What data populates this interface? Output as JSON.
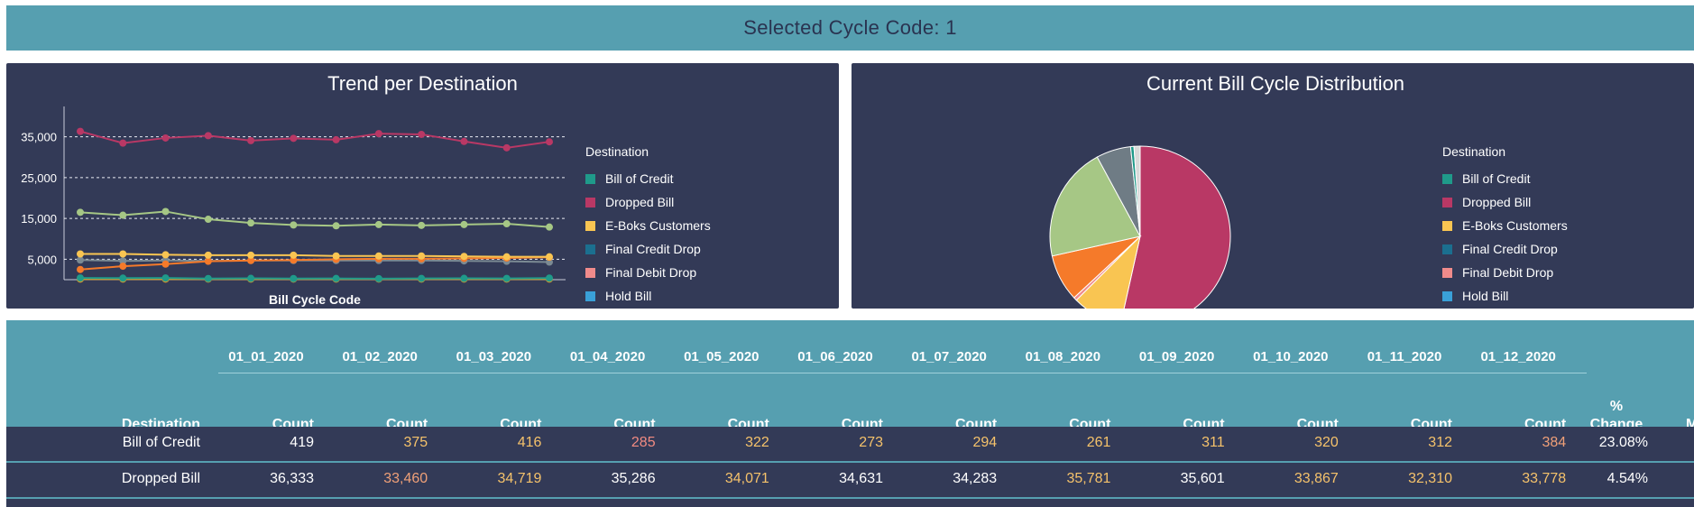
{
  "header": {
    "title": "Selected Cycle Code: 1"
  },
  "trend_panel": {
    "title": "Trend per Destination",
    "legend_title": "Destination",
    "xlabel": "Bill Cycle Code"
  },
  "distribution_panel": {
    "title": "Current Bill Cycle Distribution",
    "legend_title": "Destination"
  },
  "legend_items": [
    {
      "label": "Bill of Credit",
      "color": "#1f9a8a"
    },
    {
      "label": "Dropped Bill",
      "color": "#b93865"
    },
    {
      "label": "E-Boks Customers",
      "color": "#f9c552"
    },
    {
      "label": "Final Credit Drop",
      "color": "#1b6f8f"
    },
    {
      "label": "Final Debit Drop",
      "color": "#f08b8b"
    },
    {
      "label": "Hold Bill",
      "color": "#3aa0d8"
    }
  ],
  "chart_data": [
    {
      "type": "line",
      "title": "Trend per Destination",
      "xlabel": "Bill Cycle Code",
      "ylabel": "",
      "x": [
        "01_01_2020",
        "01_02_2020",
        "01_03_2020",
        "01_04_2020",
        "01_05_2020",
        "01_06_2020",
        "01_07_2020",
        "01_08_2020",
        "01_09_2020",
        "01_10_2020",
        "01_11_2020",
        "01_12_2020"
      ],
      "yticks": [
        "5,000",
        "15,000",
        "25,000",
        "35,000"
      ],
      "ylim": [
        0,
        42000
      ],
      "grid": true,
      "series": [
        {
          "name": "Dropped Bill",
          "color": "#b93865",
          "values": [
            36333,
            33460,
            34719,
            35286,
            34071,
            34631,
            34283,
            35781,
            35601,
            33867,
            32310,
            33778
          ]
        },
        {
          "color": "#a6c785",
          "values": [
            16500,
            15800,
            16700,
            14800,
            13900,
            13400,
            13200,
            13500,
            13300,
            13500,
            13700,
            12900
          ]
        },
        {
          "name": "E-Boks Customers",
          "color": "#f9c552",
          "values": [
            6300,
            6300,
            6100,
            6000,
            6000,
            6000,
            5800,
            5800,
            5800,
            5700,
            5600,
            5600
          ]
        },
        {
          "color": "#f57a2a",
          "values": [
            2500,
            3300,
            3800,
            4500,
            4700,
            4800,
            5000,
            5100,
            5100,
            5200,
            5300,
            5500
          ]
        },
        {
          "color": "#7b8a93",
          "values": [
            4800,
            4600,
            4700,
            4600,
            4700,
            4700,
            4700,
            4700,
            4700,
            4600,
            4500,
            4300
          ]
        },
        {
          "name": "Bill of Credit",
          "color": "#1f9a8a",
          "values": [
            419,
            375,
            416,
            285,
            322,
            273,
            294,
            261,
            311,
            320,
            312,
            384
          ]
        },
        {
          "color": "#d59a2c",
          "values": [
            150,
            150,
            150,
            150,
            150,
            150,
            150,
            150,
            150,
            150,
            150,
            150
          ]
        }
      ]
    },
    {
      "type": "pie",
      "title": "Current Bill Cycle Distribution",
      "slices": [
        {
          "name": "Dropped Bill",
          "color": "#b93865",
          "value": 53.5
        },
        {
          "name": "E-Boks Customers",
          "color": "#f9c552",
          "value": 9.0
        },
        {
          "name": "Final Debit Drop",
          "color": "#f08b8b",
          "value": 0.6
        },
        {
          "color": "#f57a2a",
          "value": 8.4
        },
        {
          "color": "#a6c785",
          "value": 20.6
        },
        {
          "color": "#6f7c85",
          "value": 6.2
        },
        {
          "name": "Bill of Credit",
          "color": "#1f9a8a",
          "value": 0.6
        },
        {
          "color": "#d9d9d9",
          "value": 1.1
        }
      ]
    }
  ],
  "table": {
    "dates": [
      "01_01_2020",
      "01_02_2020",
      "01_03_2020",
      "01_04_2020",
      "01_05_2020",
      "01_06_2020",
      "01_07_2020",
      "01_08_2020",
      "01_09_2020",
      "01_10_2020",
      "01_11_2020",
      "01_12_2020"
    ],
    "destination_header": "Destination",
    "count_header": "Count",
    "change_header_line1": "%",
    "change_header_line2": "Change",
    "extra_header": "M",
    "rows": [
      {
        "destination": "Bill of Credit",
        "counts": [
          "419",
          "375",
          "416",
          "285",
          "322",
          "273",
          "294",
          "261",
          "311",
          "320",
          "312",
          "384"
        ],
        "colors": [
          "#ffffff",
          "#f5c26b",
          "#f5c26b",
          "#f28b82",
          "#f5c26b",
          "#f5c26b",
          "#f5c26b",
          "#f5c26b",
          "#f5c26b",
          "#f5c26b",
          "#f5c26b",
          "#f0a078"
        ],
        "change": "23.08%"
      },
      {
        "destination": "Dropped Bill",
        "counts": [
          "36,333",
          "33,460",
          "34,719",
          "35,286",
          "34,071",
          "34,631",
          "34,283",
          "35,781",
          "35,601",
          "33,867",
          "32,310",
          "33,778"
        ],
        "colors": [
          "#ffffff",
          "#f0a078",
          "#f5c26b",
          "#ffffff",
          "#f5c26b",
          "#ffffff",
          "#ffffff",
          "#f5c26b",
          "#ffffff",
          "#f5c26b",
          "#f5c26b",
          "#f5c26b"
        ],
        "change": "4.54%"
      }
    ]
  }
}
